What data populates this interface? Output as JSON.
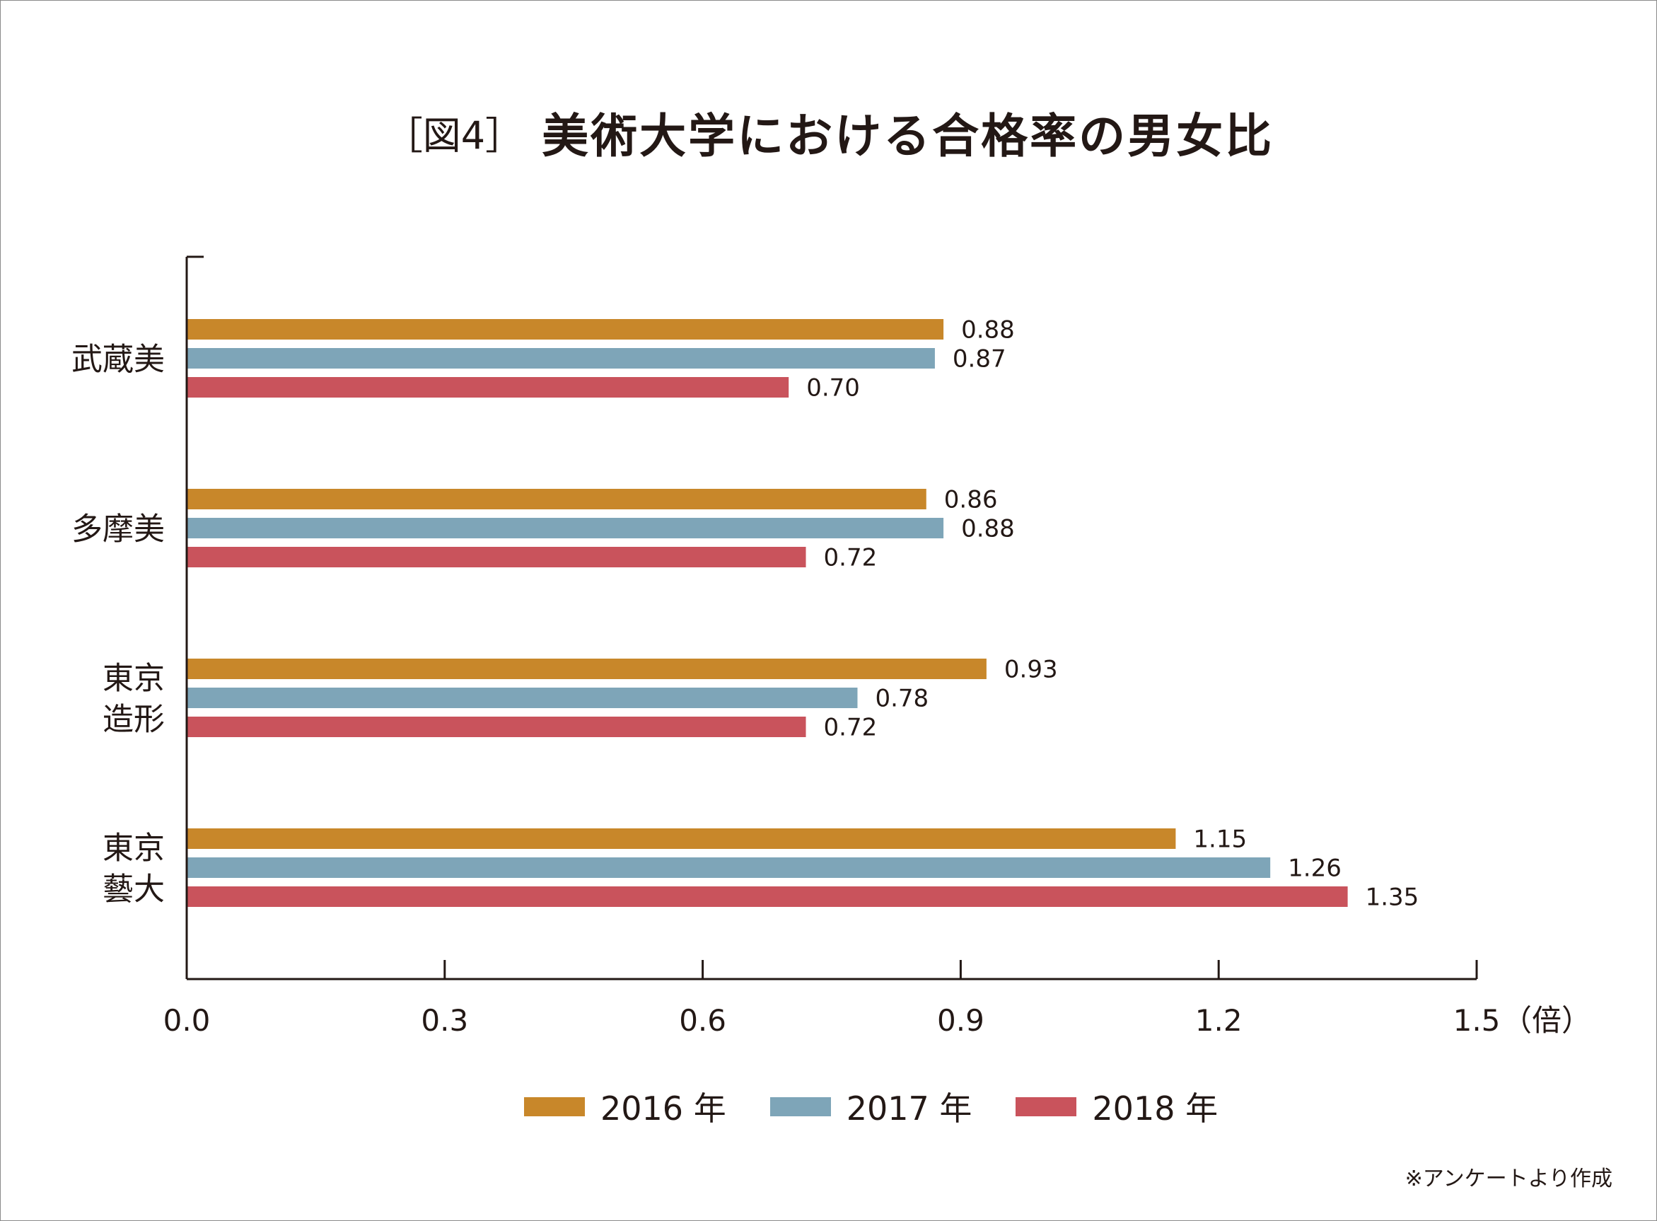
{
  "figure_label": "［図4］",
  "colors": {
    "2016": "#c8872a",
    "2017": "#7ea5b8",
    "2018": "#c9535c",
    "axis": "#231815"
  },
  "legend": [
    {
      "label": "2016 年",
      "color_key": "2016"
    },
    {
      "label": "2017 年",
      "color_key": "2017"
    },
    {
      "label": "2018 年",
      "color_key": "2018"
    }
  ],
  "note": "※アンケートより作成",
  "chart_data": {
    "type": "bar",
    "orientation": "horizontal",
    "title": "美術大学における合格率の男女比",
    "categories": [
      "武蔵美",
      "多摩美",
      "東京\n造形",
      "東京\n藝大"
    ],
    "series": [
      {
        "name": "2016 年",
        "values": [
          0.88,
          0.86,
          0.93,
          1.15
        ]
      },
      {
        "name": "2017 年",
        "values": [
          0.87,
          0.88,
          0.78,
          1.26
        ]
      },
      {
        "name": "2018 年",
        "values": [
          0.7,
          0.72,
          0.72,
          1.35
        ]
      }
    ],
    "value_labels": [
      [
        "0.88",
        "0.86",
        "0.93",
        "1.15"
      ],
      [
        "0.87",
        "0.88",
        "0.78",
        "1.26"
      ],
      [
        "0.70",
        "0.72",
        "0.72",
        "1.35"
      ]
    ],
    "xlim": [
      0,
      1.5
    ],
    "xticks": [
      0.0,
      0.3,
      0.6,
      0.9,
      1.2,
      1.5
    ],
    "xtick_labels": [
      "0.0",
      "0.3",
      "0.6",
      "0.9",
      "1.2",
      "1.5"
    ],
    "xunit": "（倍）",
    "grid": false,
    "legend_position": "bottom"
  }
}
